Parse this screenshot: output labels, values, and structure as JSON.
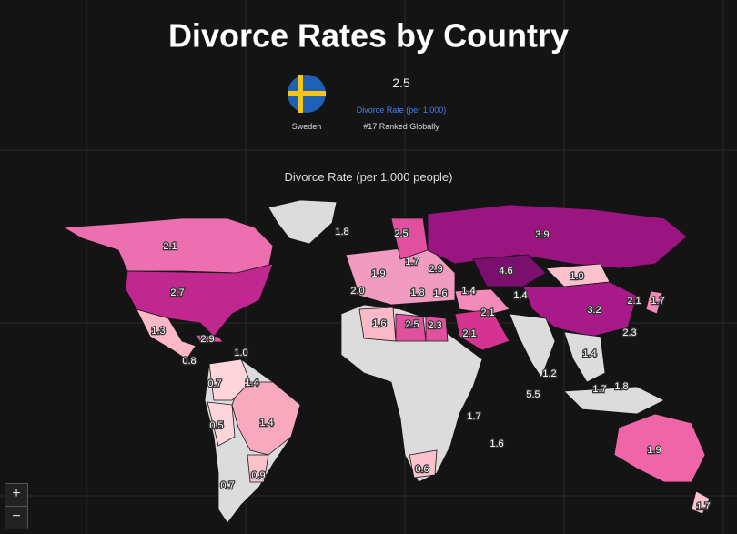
{
  "header": {
    "title": "Divorce Rates by Country"
  },
  "selected": {
    "country": "Sweden",
    "value": "2.5",
    "metric": "Divorce Rate (per 1,000)",
    "rank": "#17 Ranked Globally"
  },
  "map": {
    "title": "Divorce Rate (per 1,000 people)",
    "labels": [
      "2.1",
      "2.7",
      "1.3",
      "2.9",
      "0.8",
      "1.0",
      "0.7",
      "1.4",
      "1.4",
      "0.5",
      "0.9",
      "0.7",
      "1.8",
      "2.5",
      "1.7",
      "1.9",
      "2.9",
      "4.6",
      "1.0",
      "3.9",
      "2.0",
      "1.8",
      "1.6",
      "1.4",
      "1.4",
      "2.1",
      "1.7",
      "3.2",
      "1.6",
      "2.5",
      "2.3",
      "2.1",
      "2.1",
      "2.3",
      "1.4",
      "1.2",
      "1.7",
      "1.8",
      "5.5",
      "1.7",
      "1.6",
      "0.6",
      "1.9",
      "1.7"
    ]
  },
  "controls": {
    "zoom_in": "+",
    "zoom_out": "−"
  }
}
